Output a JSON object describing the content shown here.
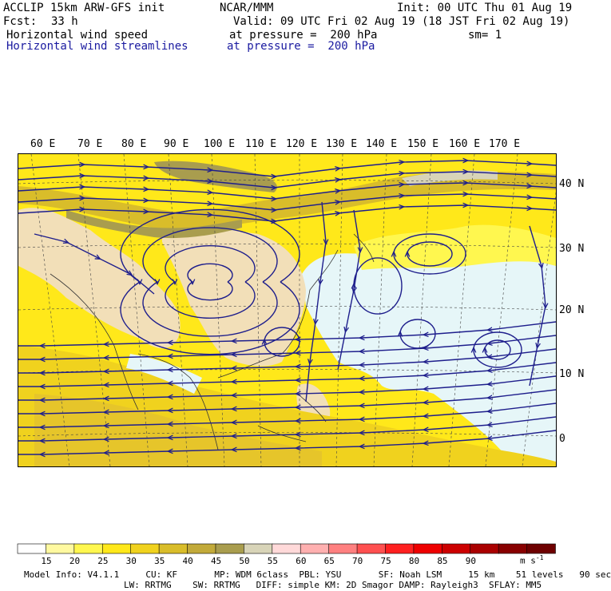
{
  "header": {
    "model": "ACCLIP 15km ARW-GFS init",
    "center": "NCAR/MMM",
    "init": "Init: 00 UTC Thu 01 Aug 19",
    "fcst_label": "Fcst:",
    "fcst_value": "33 h",
    "valid": "Valid: 09 UTC Fri 02 Aug 19 (18 JST Fri 02 Aug 19)",
    "field1": "Horizontal wind speed",
    "field1_level": "at pressure =  200 hPa",
    "smoothing": "sm= 1",
    "field2": "Horizontal wind streamlines",
    "field2_level": "at pressure =  200 hPa"
  },
  "map": {
    "lon_labels": [
      "60 E",
      "70 E",
      "80 E",
      "90 E",
      "100 E",
      "110 E",
      "120 E",
      "130 E",
      "140 E",
      "150 E",
      "160 E",
      "170 E"
    ],
    "lat_labels": [
      "40 N",
      "30 N",
      "20 N",
      "10 N",
      "0"
    ],
    "colors": {
      "ocean_light": "#e6f6f8",
      "land": "#f2dfb8",
      "yellow_light": "#fff74f",
      "yellow": "#ffe81a",
      "gold": "#e6c52a",
      "olive": "#c9b040",
      "dark_olive": "#a89a48",
      "streamline": "#1e1e8c"
    }
  },
  "colorbar": {
    "labels": [
      "15",
      "20",
      "25",
      "30",
      "35",
      "40",
      "45",
      "50",
      "55",
      "60",
      "65",
      "70",
      "75",
      "80",
      "85",
      "90"
    ],
    "unit": "m s",
    "unit_sup": "-1",
    "colors": [
      "#ffffff",
      "#fff9a0",
      "#fff74f",
      "#ffe81a",
      "#f0d21e",
      "#d9bd2a",
      "#c2aa3a",
      "#a99d4e",
      "#d8d4b8",
      "#ffd9d9",
      "#ffb0b0",
      "#ff8080",
      "#ff5050",
      "#ff2020",
      "#ee0000",
      "#cc0000",
      "#aa0000",
      "#880000",
      "#6e0000"
    ]
  },
  "footer": {
    "line1": "Model Info: V4.1.1     CU: KF       MP: WDM 6class  PBL: YSU       SF: Noah LSM     15 km    51 levels   90 sec",
    "line2": "LW: RRTMG    SW: RRTMG   DIFF: simple KM: 2D Smagor DAMP: Rayleigh3  SFLAY: MM5"
  }
}
